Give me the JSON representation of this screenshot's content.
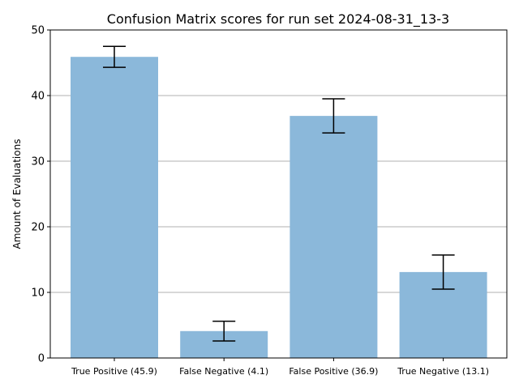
{
  "chart_data": {
    "type": "bar",
    "title": "Confusion Matrix scores for run set 2024-08-31_13-3",
    "xlabel": "",
    "ylabel": "Amount of Evaluations",
    "ylim": [
      0,
      50
    ],
    "yticks": [
      0,
      10,
      20,
      30,
      40,
      50
    ],
    "grid": "y",
    "categories": [
      "True Positive (45.9)",
      "False Negative (4.1)",
      "False Positive (36.9)",
      "True Negative (13.1)"
    ],
    "values": [
      45.9,
      4.1,
      36.9,
      13.1
    ],
    "error_low": [
      44.3,
      2.6,
      34.3,
      10.5
    ],
    "error_high": [
      47.5,
      5.6,
      39.5,
      15.7
    ],
    "bar_color": "#8bb8da",
    "error_color": "#000000",
    "grid_color": "#b0b0b0"
  }
}
